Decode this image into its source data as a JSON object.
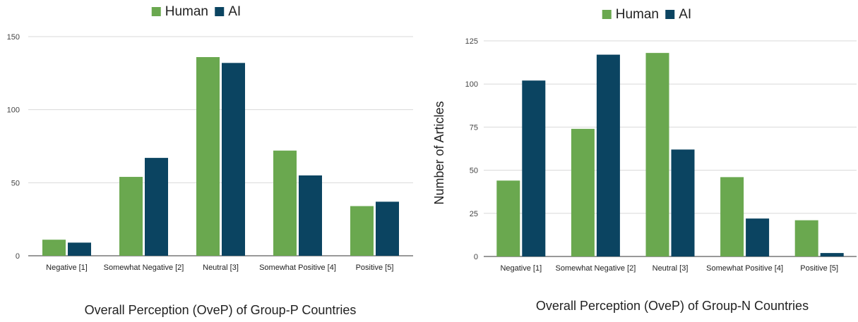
{
  "chart_data": [
    {
      "type": "bar",
      "title": "",
      "xlabel": "Overall Perception (OveP) of Group-P Countries",
      "ylabel": "",
      "ylim": [
        0,
        150
      ],
      "yticks": [
        "0",
        "50",
        "100",
        "150"
      ],
      "grid": true,
      "legend": "top-center",
      "categories": [
        "Negative [1]",
        "Somewhat Negative [2]",
        "Neutral [3]",
        "Somewhat Positive [4]",
        "Positive [5]"
      ],
      "series": [
        {
          "name": "Human",
          "color": "#6aa84f",
          "values": [
            11,
            54,
            136,
            72,
            34
          ]
        },
        {
          "name": "AI",
          "color": "#0b4461",
          "values": [
            9,
            67,
            132,
            55,
            37
          ]
        }
      ]
    },
    {
      "type": "bar",
      "title": "",
      "xlabel": "Overall Perception (OveP) of Group-N Countries",
      "ylabel": "Number of Articles",
      "ylim": [
        0,
        125
      ],
      "yticks": [
        "0",
        "25",
        "50",
        "75",
        "100",
        "125"
      ],
      "grid": true,
      "legend": "top-center",
      "categories": [
        "Negative [1]",
        "Somewhat Negative [2]",
        "Neutral [3]",
        "Somewhat Positive [4]",
        "Positive [5]"
      ],
      "series": [
        {
          "name": "Human",
          "color": "#6aa84f",
          "values": [
            44,
            74,
            118,
            46,
            21
          ]
        },
        {
          "name": "AI",
          "color": "#0b4461",
          "values": [
            102,
            117,
            62,
            22,
            2
          ]
        }
      ]
    }
  ]
}
